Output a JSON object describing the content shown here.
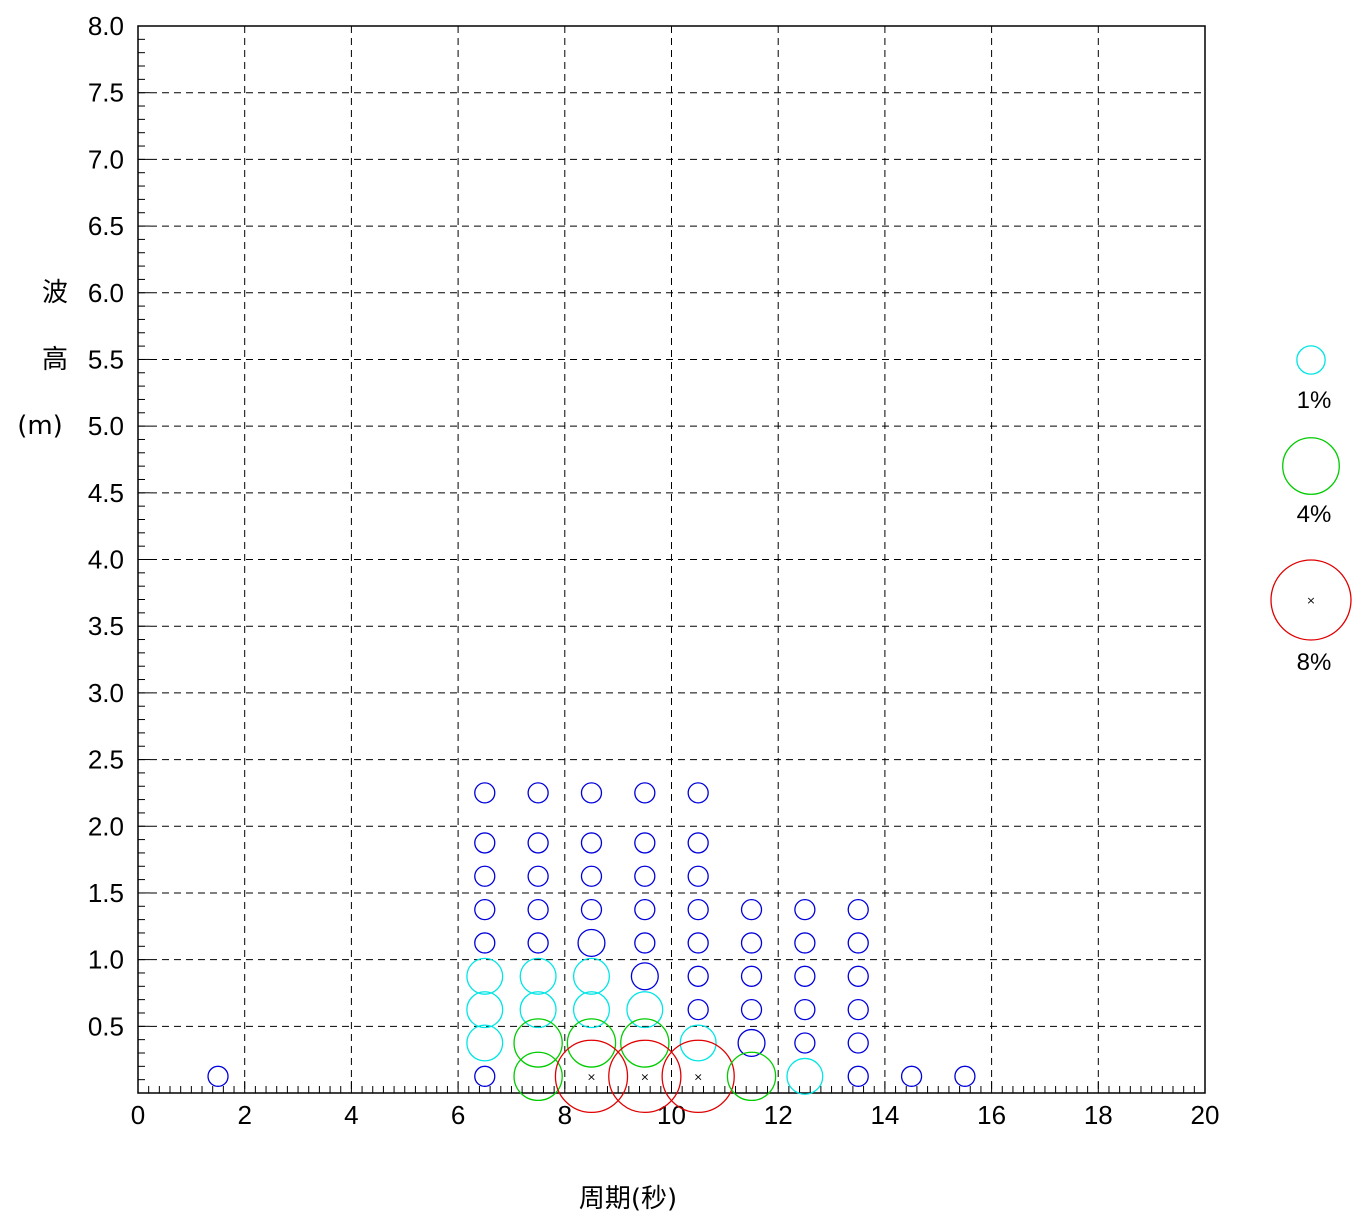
{
  "chart_data": {
    "type": "scatter",
    "subtype": "bubble",
    "title": "",
    "xlabel": "周期(秒)",
    "ylabel": [
      "波",
      "高",
      "(m)"
    ],
    "xlim": [
      0,
      20
    ],
    "ylim": [
      0,
      8.0
    ],
    "x_ticks": [
      "0",
      "2",
      "4",
      "6",
      "8",
      "10",
      "12",
      "14",
      "16",
      "18",
      "20"
    ],
    "y_ticks": [
      "0.5",
      "1.0",
      "1.5",
      "2.0",
      "2.5",
      "3.0",
      "3.5",
      "4.0",
      "4.5",
      "5.0",
      "5.5",
      "6.0",
      "6.5",
      "7.0",
      "7.5",
      "8.0"
    ],
    "grid": true,
    "grid_style": "dashed",
    "legend_position": "right",
    "legend": [
      {
        "label": "1%",
        "color": "#00e5e5",
        "percent": 1
      },
      {
        "label": "4%",
        "color": "#00cc00",
        "percent": 4
      },
      {
        "label": "8%",
        "color": "#e00000",
        "percent": 8,
        "center_marker": "×"
      }
    ],
    "colors": {
      "small": "#0000dd",
      "cyan": "#00e5e5",
      "green": "#00cc00",
      "red": "#e00000"
    },
    "points": [
      {
        "x": 1.5,
        "y": 0.125,
        "pct": 0.5
      },
      {
        "x": 6.5,
        "y": 2.25,
        "pct": 0.5
      },
      {
        "x": 6.5,
        "y": 1.875,
        "pct": 0.5
      },
      {
        "x": 6.5,
        "y": 1.625,
        "pct": 0.5
      },
      {
        "x": 6.5,
        "y": 1.375,
        "pct": 0.5
      },
      {
        "x": 6.5,
        "y": 1.125,
        "pct": 0.5
      },
      {
        "x": 6.5,
        "y": 0.875,
        "pct": 1.6
      },
      {
        "x": 6.5,
        "y": 0.625,
        "pct": 1.6
      },
      {
        "x": 6.5,
        "y": 0.375,
        "pct": 1.6
      },
      {
        "x": 6.5,
        "y": 0.125,
        "pct": 0.5
      },
      {
        "x": 7.5,
        "y": 2.25,
        "pct": 0.5
      },
      {
        "x": 7.5,
        "y": 1.875,
        "pct": 0.5
      },
      {
        "x": 7.5,
        "y": 1.625,
        "pct": 0.5
      },
      {
        "x": 7.5,
        "y": 1.375,
        "pct": 0.5
      },
      {
        "x": 7.5,
        "y": 1.125,
        "pct": 0.5
      },
      {
        "x": 7.5,
        "y": 0.875,
        "pct": 1.6
      },
      {
        "x": 7.5,
        "y": 0.625,
        "pct": 1.6
      },
      {
        "x": 7.5,
        "y": 0.375,
        "pct": 2.9
      },
      {
        "x": 7.5,
        "y": 0.125,
        "pct": 2.9
      },
      {
        "x": 8.5,
        "y": 2.25,
        "pct": 0.5
      },
      {
        "x": 8.5,
        "y": 1.875,
        "pct": 0.5
      },
      {
        "x": 8.5,
        "y": 1.625,
        "pct": 0.5
      },
      {
        "x": 8.5,
        "y": 1.375,
        "pct": 0.5
      },
      {
        "x": 8.5,
        "y": 1.125,
        "pct": 0.9
      },
      {
        "x": 8.5,
        "y": 0.875,
        "pct": 1.6
      },
      {
        "x": 8.5,
        "y": 0.625,
        "pct": 1.6
      },
      {
        "x": 8.5,
        "y": 0.375,
        "pct": 2.9
      },
      {
        "x": 8.5,
        "y": 0.125,
        "pct": 6.5,
        "center_marker": true
      },
      {
        "x": 9.5,
        "y": 2.25,
        "pct": 0.5
      },
      {
        "x": 9.5,
        "y": 1.875,
        "pct": 0.5
      },
      {
        "x": 9.5,
        "y": 1.625,
        "pct": 0.5
      },
      {
        "x": 9.5,
        "y": 1.375,
        "pct": 0.5
      },
      {
        "x": 9.5,
        "y": 1.125,
        "pct": 0.5
      },
      {
        "x": 9.5,
        "y": 0.875,
        "pct": 0.9
      },
      {
        "x": 9.5,
        "y": 0.625,
        "pct": 1.6
      },
      {
        "x": 9.5,
        "y": 0.375,
        "pct": 2.9
      },
      {
        "x": 9.5,
        "y": 0.125,
        "pct": 6.5,
        "center_marker": true
      },
      {
        "x": 10.5,
        "y": 2.25,
        "pct": 0.5
      },
      {
        "x": 10.5,
        "y": 1.875,
        "pct": 0.5
      },
      {
        "x": 10.5,
        "y": 1.625,
        "pct": 0.5
      },
      {
        "x": 10.5,
        "y": 1.375,
        "pct": 0.5
      },
      {
        "x": 10.5,
        "y": 1.125,
        "pct": 0.5
      },
      {
        "x": 10.5,
        "y": 0.875,
        "pct": 0.5
      },
      {
        "x": 10.5,
        "y": 0.625,
        "pct": 0.5
      },
      {
        "x": 10.5,
        "y": 0.375,
        "pct": 1.6
      },
      {
        "x": 10.5,
        "y": 0.125,
        "pct": 6.5,
        "center_marker": true
      },
      {
        "x": 11.5,
        "y": 1.375,
        "pct": 0.5
      },
      {
        "x": 11.5,
        "y": 1.125,
        "pct": 0.5
      },
      {
        "x": 11.5,
        "y": 0.875,
        "pct": 0.5
      },
      {
        "x": 11.5,
        "y": 0.625,
        "pct": 0.5
      },
      {
        "x": 11.5,
        "y": 0.375,
        "pct": 0.9
      },
      {
        "x": 11.5,
        "y": 0.125,
        "pct": 2.9
      },
      {
        "x": 12.5,
        "y": 1.375,
        "pct": 0.5
      },
      {
        "x": 12.5,
        "y": 1.125,
        "pct": 0.5
      },
      {
        "x": 12.5,
        "y": 0.875,
        "pct": 0.5
      },
      {
        "x": 12.5,
        "y": 0.625,
        "pct": 0.5
      },
      {
        "x": 12.5,
        "y": 0.375,
        "pct": 0.5
      },
      {
        "x": 12.5,
        "y": 0.125,
        "pct": 1.6
      },
      {
        "x": 13.5,
        "y": 1.375,
        "pct": 0.5
      },
      {
        "x": 13.5,
        "y": 1.125,
        "pct": 0.5
      },
      {
        "x": 13.5,
        "y": 0.875,
        "pct": 0.5
      },
      {
        "x": 13.5,
        "y": 0.625,
        "pct": 0.5
      },
      {
        "x": 13.5,
        "y": 0.375,
        "pct": 0.5
      },
      {
        "x": 13.5,
        "y": 0.125,
        "pct": 0.5
      },
      {
        "x": 14.5,
        "y": 0.125,
        "pct": 0.5
      },
      {
        "x": 15.5,
        "y": 0.125,
        "pct": 0.5
      }
    ]
  }
}
